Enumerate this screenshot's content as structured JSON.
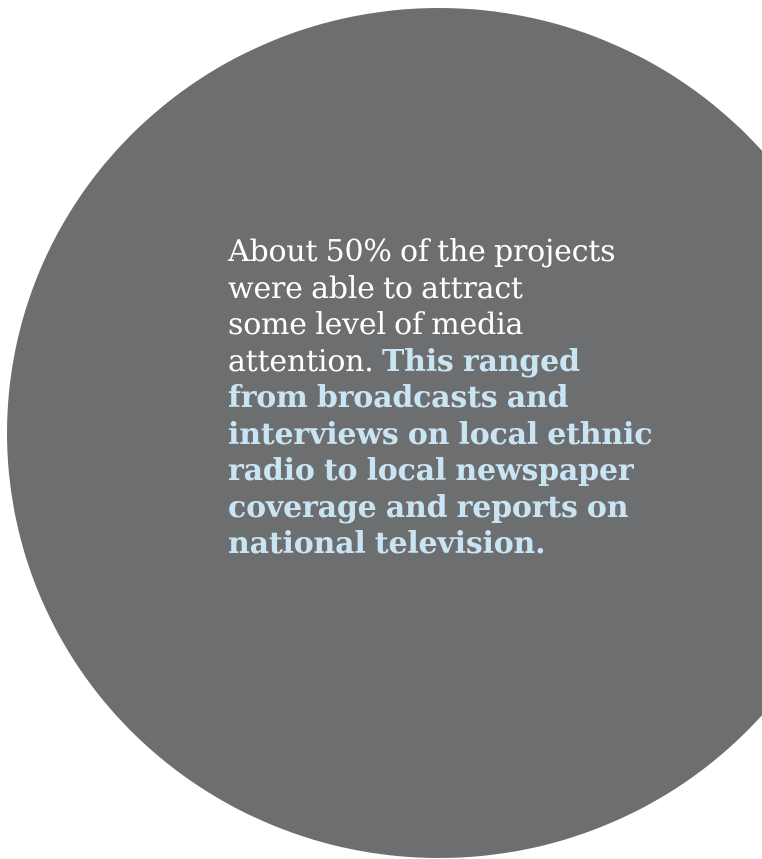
{
  "colors": {
    "circle_fill": "#6d6e70",
    "body_text": "#ffffff",
    "highlight_text": "#c9e4f3"
  },
  "callout": {
    "lines": [
      {
        "normal": "About 50% of the projects",
        "highlight": ""
      },
      {
        "normal": "were able to attract",
        "highlight": ""
      },
      {
        "normal": "some level of media",
        "highlight": ""
      },
      {
        "normal": "attention. ",
        "highlight": "This ranged"
      },
      {
        "normal": "",
        "highlight": "from broadcasts and"
      },
      {
        "normal": "",
        "highlight": "interviews on local ethnic"
      },
      {
        "normal": "",
        "highlight": "radio to local newspaper"
      },
      {
        "normal": "",
        "highlight": "coverage and reports on"
      },
      {
        "normal": "",
        "highlight": "national television."
      }
    ]
  }
}
